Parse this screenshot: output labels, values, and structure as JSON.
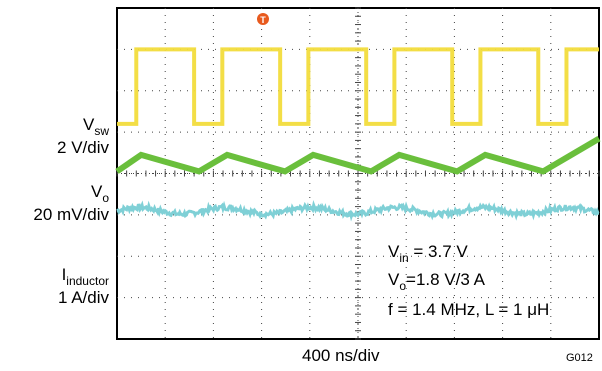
{
  "chart_data": {
    "type": "line",
    "title": "",
    "grid": true,
    "trigger_marker": "T",
    "grid_divisions": {
      "x": 10,
      "y": 8
    },
    "x_axis": {
      "label": "400 ns/div",
      "unit_per_div": 400,
      "unit": "ns",
      "range": [
        0,
        4000
      ]
    },
    "channel_labels": [
      {
        "signal": "V",
        "sub": "sw",
        "scale": "2 V/div"
      },
      {
        "signal": "V",
        "sub": "o",
        "scale": "20 mV/div"
      },
      {
        "signal": "I",
        "sub": "inductor",
        "scale": "1 A/div"
      }
    ],
    "annotations": [
      {
        "main": "V",
        "sub": "in",
        "rest": " = 3.7 V"
      },
      {
        "main": "V",
        "sub": "o",
        "rest": "=1.8 V/3 A"
      },
      {
        "main": "f = 1.4 MHz, L = 1 μH",
        "sub": "",
        "rest": ""
      }
    ],
    "figure_id": "G012",
    "series": [
      {
        "channel": "Vsw",
        "color": "#f2dc3c",
        "kind": "square",
        "period_ns": 714,
        "high_level_div": 7.0,
        "low_level_div": 5.2,
        "rising_edges_ns": [
          160,
          874,
          1588,
          2302,
          3016,
          3730
        ],
        "falling_edges_ns": [
          640,
          1354,
          2068,
          2782,
          3496
        ]
      },
      {
        "channel": "Iinductor",
        "color": "#6abf3c",
        "kind": "triangle",
        "period_ns": 714,
        "peak_level_div": 4.45,
        "valley_level_div": 4.05,
        "peaks_ns": [
          200,
          914,
          1628,
          2342,
          3056,
          3770
        ],
        "valleys_ns": [
          0,
          680,
          1394,
          2108,
          2822,
          3536
        ]
      },
      {
        "channel": "Vo",
        "color": "#7fd0d6",
        "kind": "ripple",
        "mean_level_div": 3.1,
        "ripple_amplitude_div": 0.08
      }
    ]
  }
}
